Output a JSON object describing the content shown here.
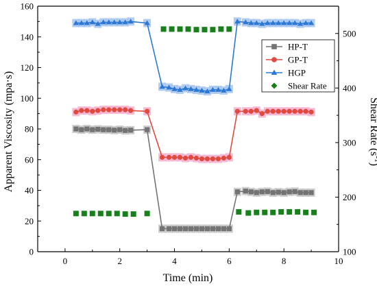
{
  "chart_data": {
    "type": "line",
    "xlabel": "Time (min)",
    "ylabel_left": "Apparent Viscosity (mpa·s)",
    "ylabel_right_base": "Shear Rate (s",
    "ylabel_right_sup": "-1",
    "ylabel_right_end": ")",
    "xlim": [
      -1,
      10
    ],
    "ylim_left": [
      0,
      160
    ],
    "ylim_right": [
      100,
      550
    ],
    "x_ticks": [
      0,
      2,
      4,
      6,
      8,
      10
    ],
    "y_left_ticks": [
      0,
      20,
      40,
      60,
      80,
      100,
      120,
      140,
      160
    ],
    "y_right_ticks": [
      100,
      200,
      300,
      400,
      500
    ],
    "grid": false,
    "legend_position": "right-middle",
    "series": [
      {
        "name": "HP-T",
        "axis": "left",
        "marker": "square",
        "color": "#737373",
        "band_color": "#c8c8c8",
        "points": [
          [
            0.4,
            80
          ],
          [
            0.6,
            79.5
          ],
          [
            0.8,
            80
          ],
          [
            1.0,
            79.5
          ],
          [
            1.2,
            79.8
          ],
          [
            1.4,
            79.5
          ],
          [
            1.6,
            79.5
          ],
          [
            1.8,
            79.2
          ],
          [
            2.0,
            79.5
          ],
          [
            2.2,
            79
          ],
          [
            2.4,
            79.2
          ],
          [
            3.0,
            79.5
          ],
          [
            3.55,
            15
          ],
          [
            3.8,
            15
          ],
          [
            4.0,
            15
          ],
          [
            4.2,
            15
          ],
          [
            4.4,
            15
          ],
          [
            4.6,
            15
          ],
          [
            4.8,
            15
          ],
          [
            5.0,
            15
          ],
          [
            5.2,
            15
          ],
          [
            5.4,
            15
          ],
          [
            5.6,
            15
          ],
          [
            5.8,
            15
          ],
          [
            6.0,
            15
          ],
          [
            6.3,
            39
          ],
          [
            6.6,
            39.5
          ],
          [
            6.8,
            39
          ],
          [
            7.0,
            38.5
          ],
          [
            7.2,
            39
          ],
          [
            7.4,
            39.2
          ],
          [
            7.6,
            38.5
          ],
          [
            7.8,
            38.8
          ],
          [
            8.0,
            38.5
          ],
          [
            8.2,
            39
          ],
          [
            8.4,
            39.2
          ],
          [
            8.6,
            38.5
          ],
          [
            8.8,
            38.5
          ],
          [
            9.0,
            38.5
          ]
        ]
      },
      {
        "name": "GP-T",
        "axis": "left",
        "marker": "circle",
        "color": "#e04a3f",
        "band_color": "#f7b4d2",
        "points": [
          [
            0.4,
            91
          ],
          [
            0.6,
            92
          ],
          [
            0.8,
            92
          ],
          [
            1.0,
            91.5
          ],
          [
            1.2,
            92
          ],
          [
            1.4,
            92.5
          ],
          [
            1.6,
            92.5
          ],
          [
            1.8,
            92.5
          ],
          [
            2.0,
            92.5
          ],
          [
            2.2,
            92.5
          ],
          [
            2.4,
            92
          ],
          [
            3.0,
            91.5
          ],
          [
            3.55,
            61.5
          ],
          [
            3.8,
            61.5
          ],
          [
            4.0,
            61.5
          ],
          [
            4.2,
            61.5
          ],
          [
            4.4,
            61
          ],
          [
            4.6,
            61.5
          ],
          [
            4.8,
            61
          ],
          [
            5.0,
            60.5
          ],
          [
            5.2,
            60.5
          ],
          [
            5.4,
            60.5
          ],
          [
            5.6,
            60.5
          ],
          [
            5.8,
            61
          ],
          [
            6.0,
            61.5
          ],
          [
            6.3,
            91.5
          ],
          [
            6.6,
            91.5
          ],
          [
            6.8,
            91.5
          ],
          [
            7.0,
            92
          ],
          [
            7.2,
            90
          ],
          [
            7.4,
            91.5
          ],
          [
            7.6,
            91.5
          ],
          [
            7.8,
            91.5
          ],
          [
            8.0,
            91.5
          ],
          [
            8.2,
            91.5
          ],
          [
            8.4,
            91.5
          ],
          [
            8.6,
            91.5
          ],
          [
            8.8,
            91.5
          ],
          [
            9.0,
            91
          ]
        ]
      },
      {
        "name": "HGP",
        "axis": "left",
        "marker": "triangle",
        "color": "#2b78d6",
        "band_color": "#a9c8f0",
        "points": [
          [
            0.4,
            149
          ],
          [
            0.6,
            149
          ],
          [
            0.8,
            149
          ],
          [
            1.0,
            149.5
          ],
          [
            1.2,
            148.5
          ],
          [
            1.4,
            149.5
          ],
          [
            1.6,
            149.5
          ],
          [
            1.8,
            149.5
          ],
          [
            2.0,
            149.5
          ],
          [
            2.2,
            149.5
          ],
          [
            2.4,
            150
          ],
          [
            3.0,
            149
          ],
          [
            3.55,
            107.5
          ],
          [
            3.8,
            107
          ],
          [
            4.0,
            106
          ],
          [
            4.2,
            105.5
          ],
          [
            4.4,
            106.5
          ],
          [
            4.6,
            106
          ],
          [
            4.8,
            105.5
          ],
          [
            5.0,
            105
          ],
          [
            5.2,
            104.5
          ],
          [
            5.4,
            105.5
          ],
          [
            5.6,
            105.5
          ],
          [
            5.8,
            105
          ],
          [
            6.0,
            106
          ],
          [
            6.3,
            150
          ],
          [
            6.6,
            149.5
          ],
          [
            6.8,
            149
          ],
          [
            7.0,
            149
          ],
          [
            7.2,
            148.5
          ],
          [
            7.4,
            149
          ],
          [
            7.6,
            149
          ],
          [
            7.8,
            149
          ],
          [
            8.0,
            149
          ],
          [
            8.2,
            149
          ],
          [
            8.4,
            149
          ],
          [
            8.6,
            148.5
          ],
          [
            8.8,
            149
          ],
          [
            9.0,
            149
          ]
        ]
      },
      {
        "name": "Shear Rate",
        "axis": "right",
        "marker": "square-sparse",
        "color": "#17801a",
        "points": [
          [
            0.4,
            170
          ],
          [
            0.7,
            170
          ],
          [
            1.0,
            170
          ],
          [
            1.3,
            170
          ],
          [
            1.6,
            170
          ],
          [
            1.9,
            170
          ],
          [
            2.2,
            169
          ],
          [
            2.5,
            169
          ],
          [
            3.0,
            170
          ],
          [
            3.6,
            508
          ],
          [
            3.9,
            508
          ],
          [
            4.2,
            508
          ],
          [
            4.5,
            508
          ],
          [
            4.8,
            507
          ],
          [
            5.1,
            507
          ],
          [
            5.4,
            507
          ],
          [
            5.7,
            508
          ],
          [
            6.0,
            508
          ],
          [
            6.35,
            173
          ],
          [
            6.7,
            171
          ],
          [
            7.0,
            172
          ],
          [
            7.3,
            172
          ],
          [
            7.6,
            172
          ],
          [
            7.9,
            173
          ],
          [
            8.2,
            173
          ],
          [
            8.5,
            173
          ],
          [
            8.8,
            172
          ],
          [
            9.1,
            172
          ]
        ]
      }
    ]
  }
}
